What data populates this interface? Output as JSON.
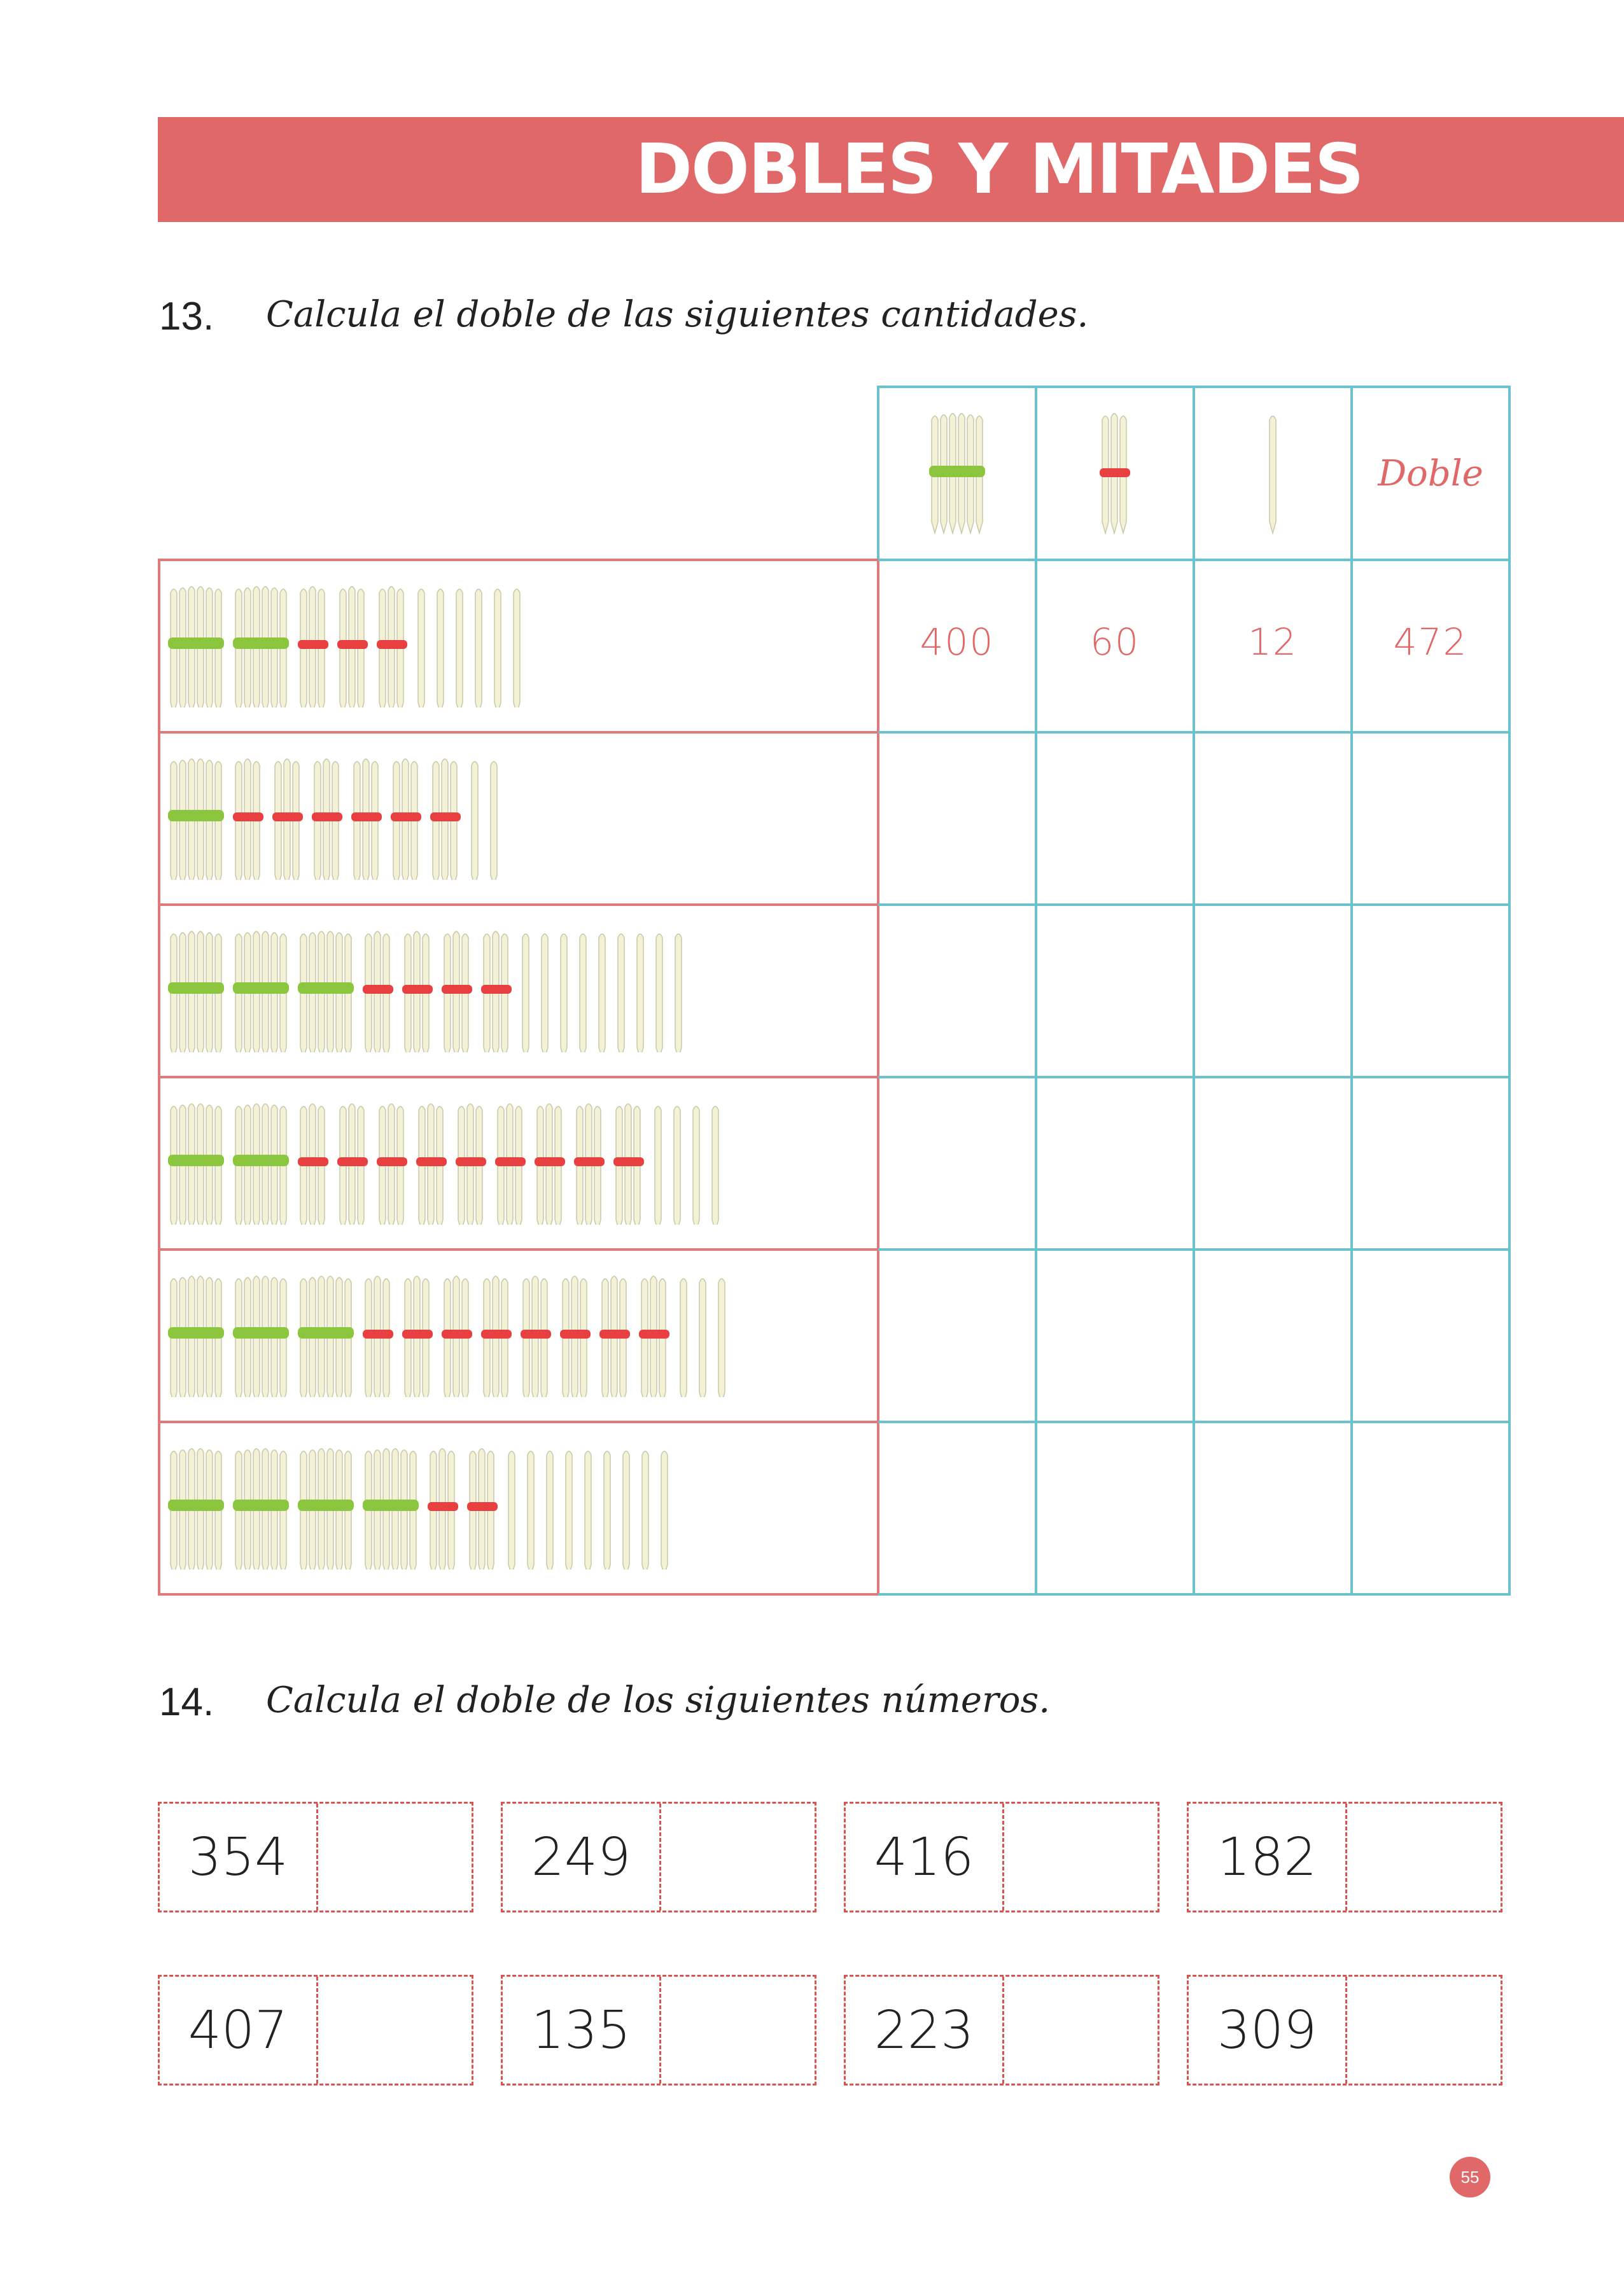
{
  "header": {
    "title": "DOBLES Y MITADES"
  },
  "exercise13": {
    "number": "13.",
    "instruction": "Calcula el doble de las siguientes cantidades.",
    "table": {
      "header_doble": "Doble",
      "rows": [
        {
          "hundreds": 2,
          "tens": 3,
          "units": 6,
          "answers": [
            "400",
            "60",
            "12",
            "472"
          ]
        },
        {
          "hundreds": 1,
          "tens": 6,
          "units": 2,
          "answers": [
            "",
            "",
            "",
            ""
          ]
        },
        {
          "hundreds": 3,
          "tens": 4,
          "units": 9,
          "answers": [
            "",
            "",
            "",
            ""
          ]
        },
        {
          "hundreds": 2,
          "tens": 9,
          "units": 4,
          "answers": [
            "",
            "",
            "",
            ""
          ]
        },
        {
          "hundreds": 3,
          "tens": 8,
          "units": 3,
          "answers": [
            "",
            "",
            "",
            ""
          ]
        },
        {
          "hundreds": 4,
          "tens": 2,
          "units": 9,
          "answers": [
            "",
            "",
            "",
            ""
          ]
        }
      ]
    }
  },
  "exercise14": {
    "number": "14.",
    "instruction": "Calcula el doble de los siguientes números.",
    "numbers": [
      "354",
      "249",
      "416",
      "182",
      "407",
      "135",
      "223",
      "309"
    ]
  },
  "colors": {
    "banner": "#e06868",
    "teal": "#6cc2cc",
    "red_band": "#e84040",
    "green_band": "#8cc63f",
    "stick": "#f3f2d6"
  },
  "page": {
    "number": "55"
  }
}
